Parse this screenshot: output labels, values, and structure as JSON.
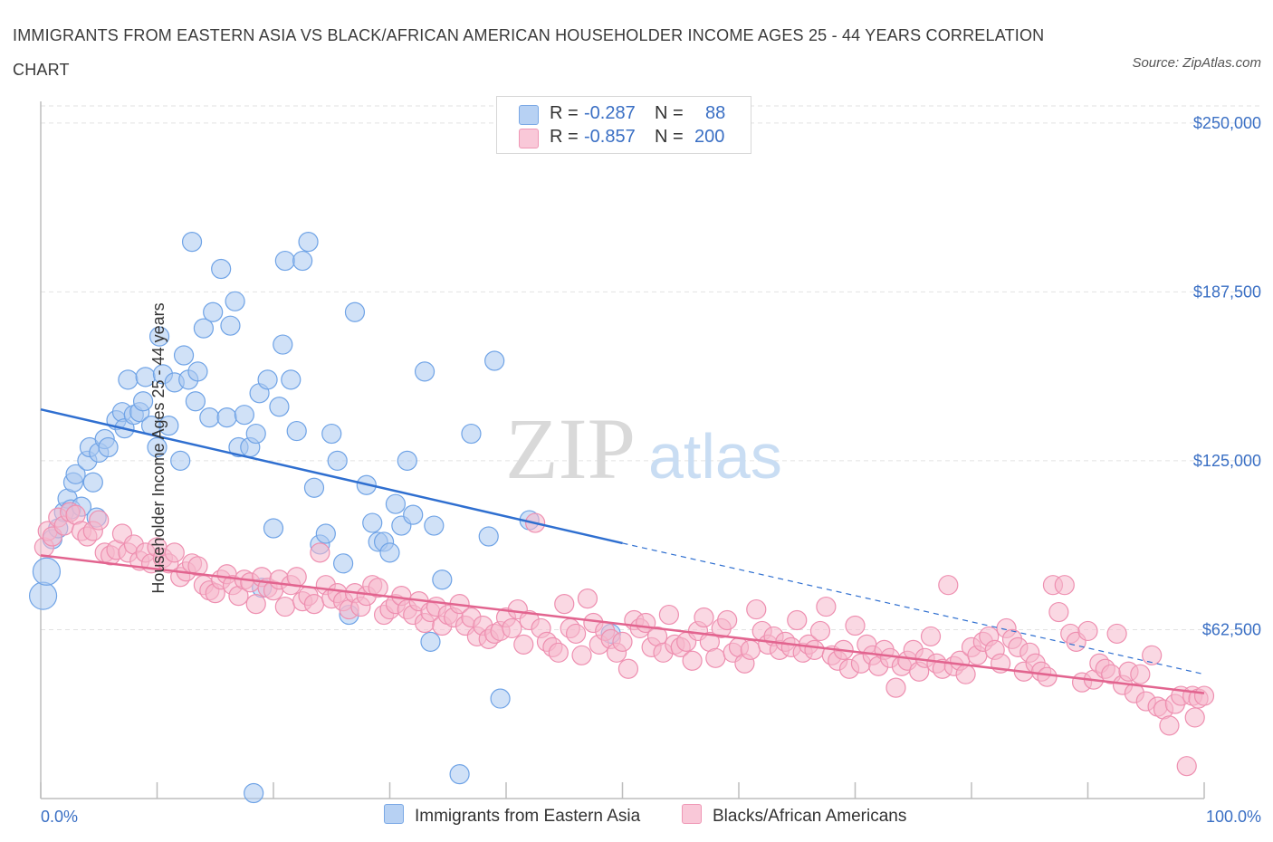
{
  "title": "IMMIGRANTS FROM EASTERN ASIA VS BLACK/AFRICAN AMERICAN HOUSEHOLDER INCOME AGES 25 - 44 YEARS CORRELATION CHART",
  "source": "Source: ZipAtlas.com",
  "watermark": {
    "zip": "ZIP",
    "atlas": "atlas"
  },
  "legend": {
    "rows": [
      {
        "r_label": "R =",
        "r_value": "-0.287",
        "n_label": "N =",
        "n_value": "88",
        "color": "#a9c8f0"
      },
      {
        "r_label": "R =",
        "r_value": "-0.857",
        "n_label": "N =",
        "n_value": "200",
        "color": "#f6b8cc"
      }
    ]
  },
  "bottom_legend": [
    "Immigrants from Eastern Asia",
    "Blacks/African Americans"
  ],
  "chart_data": {
    "type": "scatter",
    "title": "IMMIGRANTS FROM EASTERN ASIA VS BLACK/AFRICAN AMERICAN HOUSEHOLDER INCOME AGES 25 - 44 YEARS CORRELATION CHART",
    "xlabel": "",
    "ylabel": "Householder Income Ages 25 - 44 years",
    "xlim": [
      0,
      100
    ],
    "ylim": [
      0,
      262000
    ],
    "x_tick_labels": [
      "0.0%",
      "100.0%"
    ],
    "y_ticks": [
      62500,
      125000,
      187500,
      250000
    ],
    "y_tick_labels": [
      "$62,500",
      "$125,000",
      "$187,500",
      "$250,000"
    ],
    "grid": true,
    "legend_placement": "top-center",
    "series": [
      {
        "name": "Immigrants from Eastern Asia",
        "color": "#6fa3e6",
        "fill": "#a9c8f0",
        "line_color": "#2f6fd0",
        "trend": {
          "x0": 0,
          "y0": 144000,
          "x1": 50,
          "y1": 94500,
          "dash_to_x": 100,
          "dash_to_y": 46000
        },
        "points": [
          [
            0.2,
            75000
          ],
          [
            0.5,
            84000
          ],
          [
            1,
            96000
          ],
          [
            1.5,
            100000
          ],
          [
            2,
            106000
          ],
          [
            2.3,
            111000
          ],
          [
            2.6,
            107000
          ],
          [
            2.8,
            117000
          ],
          [
            3,
            120000
          ],
          [
            3.5,
            108000
          ],
          [
            4,
            125000
          ],
          [
            4.2,
            130000
          ],
          [
            4.5,
            117000
          ],
          [
            4.8,
            104000
          ],
          [
            5,
            128000
          ],
          [
            5.5,
            133000
          ],
          [
            5.8,
            130000
          ],
          [
            6.5,
            140000
          ],
          [
            7,
            143000
          ],
          [
            7.2,
            137000
          ],
          [
            7.5,
            155000
          ],
          [
            8,
            142000
          ],
          [
            8.5,
            143000
          ],
          [
            8.8,
            147000
          ],
          [
            9,
            156000
          ],
          [
            9.5,
            138000
          ],
          [
            10,
            130000
          ],
          [
            10.2,
            171000
          ],
          [
            10.5,
            157000
          ],
          [
            11,
            138000
          ],
          [
            11.5,
            154000
          ],
          [
            12,
            125000
          ],
          [
            12.3,
            164000
          ],
          [
            12.7,
            155000
          ],
          [
            13,
            206000
          ],
          [
            13.3,
            147000
          ],
          [
            13.5,
            158000
          ],
          [
            14,
            174000
          ],
          [
            14.5,
            141000
          ],
          [
            14.8,
            180000
          ],
          [
            15.5,
            196000
          ],
          [
            16,
            141000
          ],
          [
            16.3,
            175000
          ],
          [
            16.7,
            184000
          ],
          [
            17,
            130000
          ],
          [
            17.5,
            142000
          ],
          [
            18,
            130000
          ],
          [
            18.5,
            135000
          ],
          [
            18.8,
            150000
          ],
          [
            19,
            78000
          ],
          [
            19.5,
            155000
          ],
          [
            20,
            100000
          ],
          [
            20.5,
            145000
          ],
          [
            20.8,
            168000
          ],
          [
            21,
            199000
          ],
          [
            21.5,
            155000
          ],
          [
            22,
            136000
          ],
          [
            22.5,
            199000
          ],
          [
            23,
            206000
          ],
          [
            23.5,
            115000
          ],
          [
            24,
            94000
          ],
          [
            24.5,
            98000
          ],
          [
            25,
            135000
          ],
          [
            25.5,
            125000
          ],
          [
            26,
            87000
          ],
          [
            26.5,
            68000
          ],
          [
            27,
            180000
          ],
          [
            28,
            116000
          ],
          [
            28.5,
            102000
          ],
          [
            29,
            95000
          ],
          [
            29.5,
            95000
          ],
          [
            30,
            91000
          ],
          [
            30.5,
            109000
          ],
          [
            31,
            101000
          ],
          [
            31.5,
            125000
          ],
          [
            32,
            105000
          ],
          [
            33,
            158000
          ],
          [
            33.5,
            58000
          ],
          [
            33.8,
            101000
          ],
          [
            34.5,
            81000
          ],
          [
            36,
            9000
          ],
          [
            37,
            135000
          ],
          [
            38.5,
            97000
          ],
          [
            39,
            162000
          ],
          [
            39.5,
            37000
          ],
          [
            42,
            103000
          ],
          [
            49,
            61000
          ],
          [
            18.3,
            2000
          ]
        ]
      },
      {
        "name": "Blacks/African Americans",
        "color": "#ee8fb0",
        "fill": "#f6b8cc",
        "line_color": "#e2648f",
        "trend": {
          "x0": 0,
          "y0": 90000,
          "x1": 100,
          "y1": 39000
        },
        "points": [
          [
            0.3,
            93000
          ],
          [
            0.6,
            99000
          ],
          [
            1,
            97000
          ],
          [
            1.5,
            104000
          ],
          [
            2,
            101000
          ],
          [
            2.5,
            106000
          ],
          [
            3,
            105000
          ],
          [
            3.5,
            99000
          ],
          [
            4,
            97000
          ],
          [
            4.5,
            99000
          ],
          [
            5,
            103000
          ],
          [
            5.5,
            91000
          ],
          [
            6,
            90000
          ],
          [
            6.5,
            92000
          ],
          [
            7,
            98000
          ],
          [
            7.5,
            91000
          ],
          [
            8,
            94000
          ],
          [
            8.5,
            88000
          ],
          [
            9,
            91000
          ],
          [
            9.5,
            87000
          ],
          [
            10,
            93000
          ],
          [
            10.5,
            89000
          ],
          [
            11,
            87000
          ],
          [
            11.5,
            91000
          ],
          [
            12,
            82000
          ],
          [
            12.5,
            84000
          ],
          [
            13,
            87000
          ],
          [
            13.5,
            86000
          ],
          [
            14,
            79000
          ],
          [
            14.5,
            77000
          ],
          [
            15,
            76000
          ],
          [
            15.5,
            81000
          ],
          [
            16,
            83000
          ],
          [
            16.5,
            79000
          ],
          [
            17,
            75000
          ],
          [
            17.5,
            81000
          ],
          [
            18,
            80000
          ],
          [
            18.5,
            72000
          ],
          [
            19,
            82000
          ],
          [
            19.5,
            78000
          ],
          [
            20,
            77000
          ],
          [
            20.5,
            81000
          ],
          [
            21,
            71000
          ],
          [
            21.5,
            79000
          ],
          [
            22,
            82000
          ],
          [
            22.5,
            73000
          ],
          [
            23,
            75000
          ],
          [
            23.5,
            72000
          ],
          [
            24,
            91000
          ],
          [
            24.5,
            79000
          ],
          [
            25,
            74000
          ],
          [
            25.5,
            76000
          ],
          [
            26,
            73000
          ],
          [
            26.5,
            70000
          ],
          [
            27,
            76000
          ],
          [
            27.5,
            71000
          ],
          [
            28,
            75000
          ],
          [
            28.5,
            79000
          ],
          [
            29,
            78000
          ],
          [
            29.5,
            68000
          ],
          [
            30,
            70000
          ],
          [
            30.5,
            72000
          ],
          [
            31,
            75000
          ],
          [
            31.5,
            70000
          ],
          [
            32,
            68000
          ],
          [
            32.5,
            73000
          ],
          [
            33,
            65000
          ],
          [
            33.5,
            69000
          ],
          [
            34,
            71000
          ],
          [
            34.5,
            64000
          ],
          [
            35,
            68000
          ],
          [
            35.5,
            67000
          ],
          [
            36,
            72000
          ],
          [
            36.5,
            64000
          ],
          [
            37,
            67000
          ],
          [
            37.5,
            60000
          ],
          [
            38,
            64000
          ],
          [
            38.5,
            59000
          ],
          [
            39,
            61000
          ],
          [
            39.5,
            62000
          ],
          [
            40,
            67000
          ],
          [
            40.5,
            63000
          ],
          [
            41,
            70000
          ],
          [
            41.5,
            57000
          ],
          [
            42,
            66000
          ],
          [
            42.5,
            102000
          ],
          [
            43,
            63000
          ],
          [
            43.5,
            58000
          ],
          [
            44,
            56000
          ],
          [
            44.5,
            54000
          ],
          [
            45,
            72000
          ],
          [
            45.5,
            63000
          ],
          [
            46,
            61000
          ],
          [
            46.5,
            53000
          ],
          [
            47,
            74000
          ],
          [
            47.5,
            65000
          ],
          [
            48,
            57000
          ],
          [
            48.5,
            62000
          ],
          [
            49,
            59000
          ],
          [
            49.5,
            54000
          ],
          [
            50,
            58000
          ],
          [
            50.5,
            48000
          ],
          [
            51,
            66000
          ],
          [
            51.5,
            63000
          ],
          [
            52,
            65000
          ],
          [
            52.5,
            56000
          ],
          [
            53,
            60000
          ],
          [
            53.5,
            54000
          ],
          [
            54,
            68000
          ],
          [
            54.5,
            57000
          ],
          [
            55,
            56000
          ],
          [
            55.5,
            58000
          ],
          [
            56,
            51000
          ],
          [
            56.5,
            62000
          ],
          [
            57,
            67000
          ],
          [
            57.5,
            58000
          ],
          [
            58,
            52000
          ],
          [
            58.5,
            63000
          ],
          [
            59,
            66000
          ],
          [
            59.5,
            54000
          ],
          [
            60,
            56000
          ],
          [
            60.5,
            50000
          ],
          [
            61,
            55000
          ],
          [
            61.5,
            70000
          ],
          [
            62,
            62000
          ],
          [
            62.5,
            57000
          ],
          [
            63,
            60000
          ],
          [
            63.5,
            55000
          ],
          [
            64,
            58000
          ],
          [
            64.5,
            56000
          ],
          [
            65,
            66000
          ],
          [
            65.5,
            54000
          ],
          [
            66,
            57000
          ],
          [
            66.5,
            55000
          ],
          [
            67,
            62000
          ],
          [
            67.5,
            71000
          ],
          [
            68,
            53000
          ],
          [
            68.5,
            51000
          ],
          [
            69,
            55000
          ],
          [
            69.5,
            48000
          ],
          [
            70,
            64000
          ],
          [
            70.5,
            50000
          ],
          [
            71,
            57000
          ],
          [
            71.5,
            53000
          ],
          [
            72,
            49000
          ],
          [
            72.5,
            55000
          ],
          [
            73,
            52000
          ],
          [
            73.5,
            41000
          ],
          [
            74,
            49000
          ],
          [
            74.5,
            51000
          ],
          [
            75,
            55000
          ],
          [
            75.5,
            47000
          ],
          [
            76,
            52000
          ],
          [
            76.5,
            60000
          ],
          [
            77,
            50000
          ],
          [
            77.5,
            48000
          ],
          [
            78,
            79000
          ],
          [
            78.5,
            49000
          ],
          [
            79,
            51000
          ],
          [
            79.5,
            46000
          ],
          [
            80,
            56000
          ],
          [
            80.5,
            53000
          ],
          [
            81,
            58000
          ],
          [
            81.5,
            60000
          ],
          [
            82,
            55000
          ],
          [
            82.5,
            50000
          ],
          [
            83,
            63000
          ],
          [
            83.5,
            59000
          ],
          [
            84,
            56000
          ],
          [
            84.5,
            47000
          ],
          [
            85,
            54000
          ],
          [
            85.5,
            50000
          ],
          [
            86,
            47000
          ],
          [
            86.5,
            45000
          ],
          [
            87,
            79000
          ],
          [
            87.5,
            69000
          ],
          [
            88,
            79000
          ],
          [
            88.5,
            61000
          ],
          [
            89,
            58000
          ],
          [
            89.5,
            43000
          ],
          [
            90,
            62000
          ],
          [
            90.5,
            44000
          ],
          [
            91,
            50000
          ],
          [
            91.5,
            48000
          ],
          [
            92,
            46000
          ],
          [
            92.5,
            61000
          ],
          [
            93,
            42000
          ],
          [
            93.5,
            47000
          ],
          [
            94,
            39000
          ],
          [
            94.5,
            46000
          ],
          [
            95,
            36000
          ],
          [
            95.5,
            53000
          ]
        ]
      },
      {
        "name": "Blacks/African Americans (right tail)",
        "color": "#ee8fb0",
        "fill": "#f6b8cc",
        "points": [
          [
            96,
            34000
          ],
          [
            96.5,
            33000
          ],
          [
            97,
            27000
          ],
          [
            97.5,
            35000
          ],
          [
            98,
            38000
          ],
          [
            98.5,
            12000
          ],
          [
            99,
            38000
          ],
          [
            99.2,
            30000
          ],
          [
            99.5,
            37000
          ],
          [
            100,
            38000
          ]
        ]
      }
    ]
  }
}
